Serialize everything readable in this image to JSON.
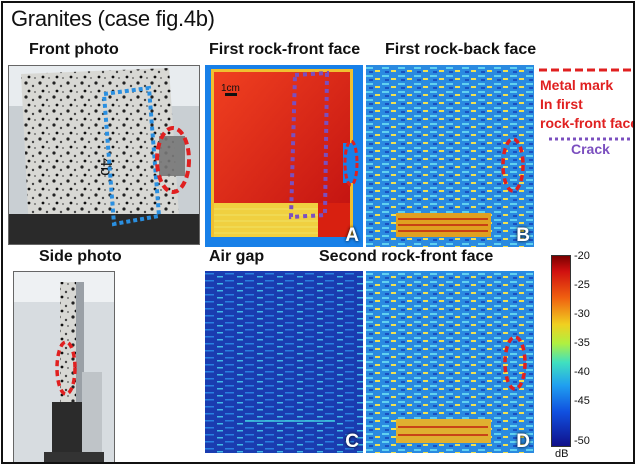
{
  "figure": {
    "title": "Granites (case fig.4b)"
  },
  "labels": {
    "front_photo": "Front photo",
    "side_photo": "Side photo",
    "first_front": "First rock-front face",
    "first_back": "First rock-back face",
    "air_gap": "Air gap",
    "second_front": "Second rock-front face",
    "scale": "1cm",
    "photo_mark": "4b",
    "panel_a": "A",
    "panel_b": "B",
    "panel_c": "C",
    "panel_d": "D"
  },
  "legend": {
    "metal_line1": "Metal mark",
    "metal_line2": "In first",
    "metal_line3": "rock-front face",
    "crack": "Crack",
    "metal_color": "#e02020",
    "crack_color": "#7b4fbf"
  },
  "colorbar": {
    "unit": "dB",
    "ticks": [
      "-20",
      "-25",
      "-30",
      "-35",
      "-40",
      "-45",
      "-50"
    ],
    "min": -50,
    "max": -18,
    "colormap": "jet"
  }
}
